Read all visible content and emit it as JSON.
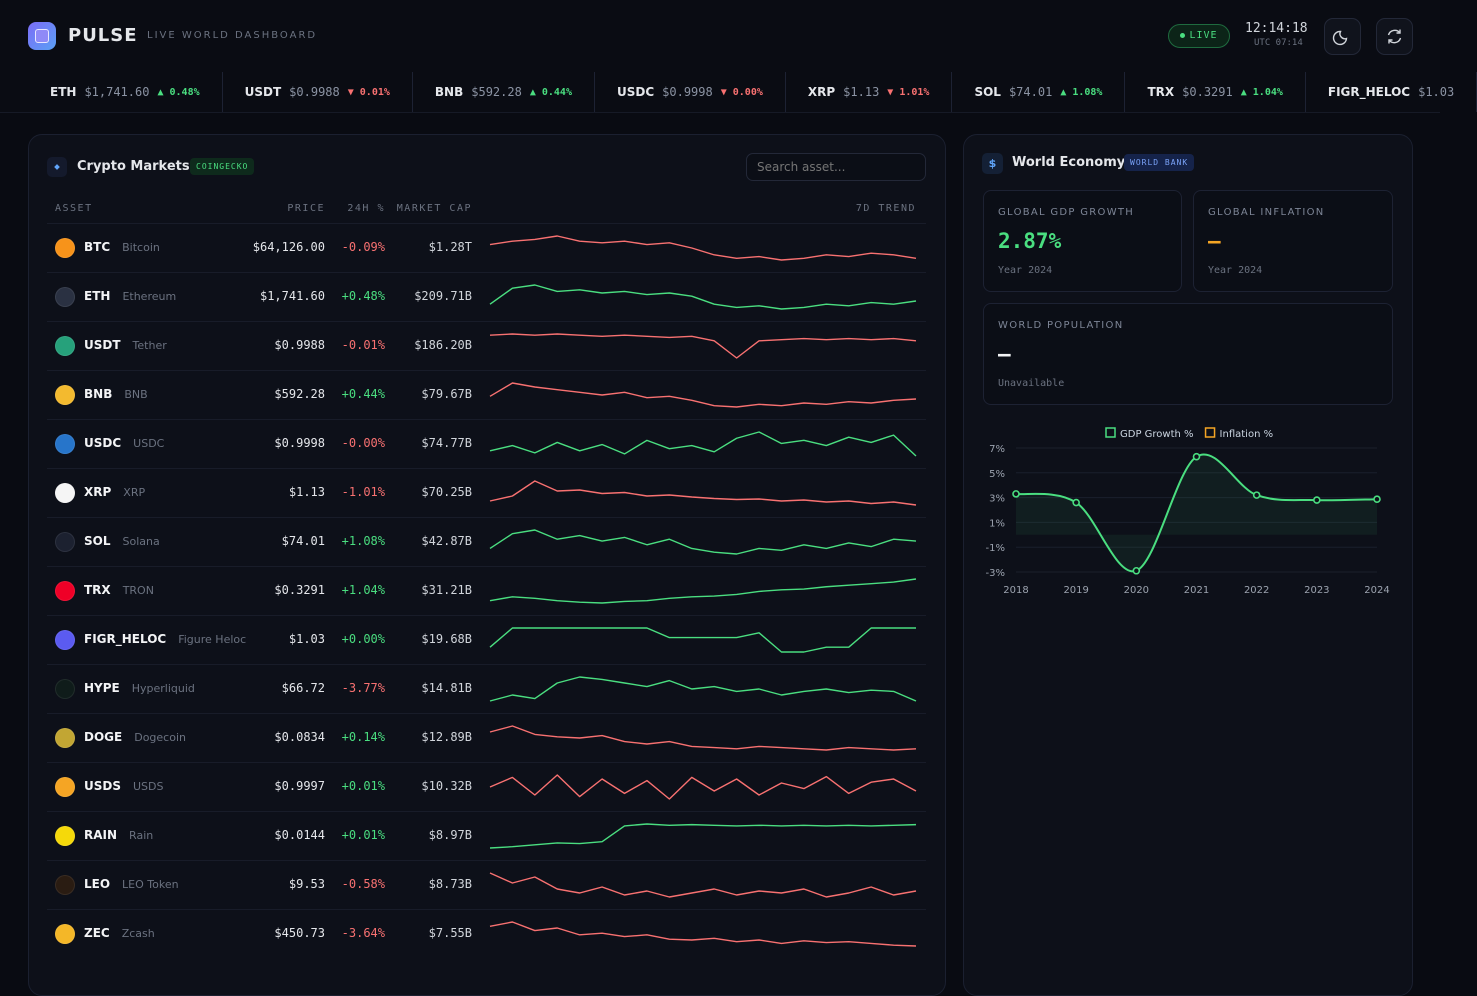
{
  "header": {
    "brand": "PULSE",
    "subtitle": "LIVE WORLD DASHBOARD",
    "live": "LIVE",
    "time": "12:14:18",
    "utc": "UTC 07:14"
  },
  "ticker": [
    {
      "symbol": "ETH",
      "price": "$1,741.60",
      "change": "▲ 0.48%"
    },
    {
      "symbol": "USDT",
      "price": "$0.9988",
      "change": "▼ 0.01%"
    },
    {
      "symbol": "BNB",
      "price": "$592.28",
      "change": "▲ 0.44%"
    },
    {
      "symbol": "USDC",
      "price": "$0.9998",
      "change": "▼ 0.00%"
    },
    {
      "symbol": "XRP",
      "price": "$1.13",
      "change": "▼ 1.01%"
    },
    {
      "symbol": "SOL",
      "price": "$74.01",
      "change": "▲ 1.08%"
    },
    {
      "symbol": "TRX",
      "price": "$0.3291",
      "change": "▲ 1.04%"
    },
    {
      "symbol": "FIGR_HELOC",
      "price": "$1.03"
    }
  ],
  "crypto": {
    "title": "Crypto Markets",
    "badge": "COINGECKO",
    "search": "Search asset...",
    "columns": [
      "ASSET",
      "PRICE",
      "24H %",
      "MARKET CAP",
      "7D TREND"
    ],
    "rows": [
      {
        "symbol": "BTC",
        "name": "Bitcoin",
        "price": "$64,126.00",
        "change": "-0.09%",
        "cap": "$1.28T",
        "icon_color": "#f7931a",
        "trend_color": "#f87171",
        "trend": [
          58,
          60,
          61,
          63,
          60,
          59,
          60,
          58,
          59,
          56,
          52,
          50,
          51,
          49,
          50,
          52,
          51,
          53,
          52,
          50
        ]
      },
      {
        "symbol": "ETH",
        "name": "Ethereum",
        "price": "$1,741.60",
        "change": "+0.48%",
        "cap": "$209.71B",
        "icon_color": "#2a3142",
        "trend_color": "#4ade80",
        "trend": [
          50,
          60,
          62,
          58,
          59,
          57,
          58,
          56,
          57,
          55,
          50,
          48,
          49,
          47,
          48,
          50,
          49,
          51,
          50,
          52
        ]
      },
      {
        "symbol": "USDT",
        "name": "Tether",
        "price": "$0.9988",
        "change": "-0.01%",
        "cap": "$186.20B",
        "icon_color": "#26a17b",
        "trend_color": "#f87171",
        "trend": [
          60,
          61,
          60,
          61,
          60,
          59,
          60,
          59,
          58,
          59,
          55,
          40,
          55,
          56,
          57,
          56,
          57,
          56,
          57,
          55
        ]
      },
      {
        "symbol": "BNB",
        "name": "BNB",
        "price": "$592.28",
        "change": "+0.44%",
        "cap": "$79.67B",
        "icon_color": "#f3ba2f",
        "trend_color": "#f87171",
        "trend": [
          55,
          65,
          62,
          60,
          58,
          56,
          58,
          54,
          55,
          52,
          48,
          47,
          49,
          48,
          50,
          49,
          51,
          50,
          52,
          53
        ]
      },
      {
        "symbol": "USDC",
        "name": "USDC",
        "price": "$0.9998",
        "change": "-0.00%",
        "cap": "$74.77B",
        "icon_color": "#2775ca",
        "trend_color": "#4ade80",
        "trend": [
          50,
          55,
          48,
          58,
          50,
          56,
          47,
          60,
          52,
          55,
          49,
          62,
          68,
          57,
          60,
          55,
          63,
          58,
          65,
          45
        ]
      },
      {
        "symbol": "XRP",
        "name": "XRP",
        "price": "$1.13",
        "change": "-1.01%",
        "cap": "$70.25B",
        "icon_color": "#f5f5f5",
        "trend_color": "#f87171",
        "trend": [
          40,
          50,
          80,
          60,
          62,
          55,
          57,
          50,
          52,
          48,
          45,
          43,
          44,
          40,
          42,
          38,
          40,
          35,
          38,
          32
        ]
      },
      {
        "symbol": "SOL",
        "name": "Solana",
        "price": "$74.01",
        "change": "+1.08%",
        "cap": "$42.87B",
        "icon_color": "#1c2130",
        "trend_color": "#4ade80",
        "trend": [
          50,
          58,
          60,
          55,
          57,
          54,
          56,
          52,
          55,
          50,
          48,
          47,
          50,
          49,
          52,
          50,
          53,
          51,
          55,
          54
        ]
      },
      {
        "symbol": "TRX",
        "name": "TRON",
        "price": "$0.3291",
        "change": "+1.04%",
        "cap": "$31.21B",
        "icon_color": "#ef0027",
        "trend_color": "#4ade80",
        "trend": [
          30,
          35,
          33,
          30,
          28,
          27,
          29,
          30,
          33,
          35,
          36,
          38,
          42,
          44,
          45,
          48,
          50,
          52,
          54,
          58
        ]
      },
      {
        "symbol": "FIGR_HELOC",
        "name": "Figure Heloc",
        "price": "$1.03",
        "change": "+0.00%",
        "cap": "$19.68B",
        "icon_color": "#5b5bf0",
        "trend_color": "#4ade80",
        "trend": [
          40,
          80,
          80,
          80,
          80,
          80,
          80,
          80,
          60,
          60,
          60,
          60,
          70,
          30,
          30,
          40,
          40,
          80,
          80,
          80
        ]
      },
      {
        "symbol": "HYPE",
        "name": "Hyperliquid",
        "price": "$66.72",
        "change": "-3.77%",
        "cap": "$14.81B",
        "icon_color": "#0f1c1a",
        "trend_color": "#4ade80",
        "trend": [
          40,
          45,
          42,
          55,
          60,
          58,
          55,
          52,
          57,
          50,
          52,
          48,
          50,
          45,
          48,
          50,
          47,
          49,
          48,
          40
        ]
      },
      {
        "symbol": "DOGE",
        "name": "Dogecoin",
        "price": "$0.0834",
        "change": "+0.14%",
        "cap": "$12.89B",
        "icon_color": "#c2a633",
        "trend_color": "#f87171",
        "trend": [
          60,
          65,
          58,
          56,
          55,
          57,
          52,
          50,
          52,
          48,
          47,
          46,
          48,
          47,
          46,
          45,
          47,
          46,
          45,
          46
        ]
      },
      {
        "symbol": "USDS",
        "name": "USDS",
        "price": "$0.9997",
        "change": "+0.01%",
        "cap": "$10.32B",
        "icon_color": "#f5a524",
        "trend_color": "#f87171",
        "trend": [
          50,
          62,
          40,
          65,
          38,
          60,
          42,
          58,
          35,
          62,
          45,
          60,
          40,
          55,
          48,
          63,
          42,
          56,
          60,
          45
        ]
      },
      {
        "symbol": "RAIN",
        "name": "Rain",
        "price": "$0.0144",
        "change": "+0.01%",
        "cap": "$8.97B",
        "icon_color": "#f5d90a",
        "trend_color": "#4ade80",
        "trend": [
          20,
          22,
          25,
          28,
          27,
          30,
          55,
          58,
          56,
          57,
          56,
          55,
          56,
          55,
          56,
          55,
          56,
          55,
          56,
          57
        ]
      },
      {
        "symbol": "LEO",
        "name": "LEO Token",
        "price": "$9.53",
        "change": "-0.58%",
        "cap": "$8.73B",
        "icon_color": "#2a1c12",
        "trend_color": "#f87171",
        "trend": [
          60,
          55,
          58,
          52,
          50,
          53,
          49,
          51,
          48,
          50,
          52,
          49,
          51,
          50,
          52,
          48,
          50,
          53,
          49,
          51
        ]
      },
      {
        "symbol": "ZEC",
        "name": "Zcash",
        "price": "$450.73",
        "change": "-3.64%",
        "cap": "$7.55B",
        "icon_color": "#f4b728",
        "trend_color": "#f87171",
        "trend": [
          60,
          65,
          55,
          58,
          50,
          52,
          48,
          50,
          45,
          44,
          46,
          42,
          44,
          40,
          43,
          41,
          42,
          40,
          38,
          37
        ]
      }
    ]
  },
  "economy": {
    "icon": "$",
    "title": "World Economy",
    "badge": "WORLD BANK",
    "cards": [
      {
        "label": "GLOBAL GDP GROWTH",
        "value": "2.87%",
        "note": "Year 2024"
      },
      {
        "label": "GLOBAL INFLATION",
        "value": "—",
        "note": "Year 2024"
      },
      {
        "label": "WORLD POPULATION",
        "value": "—",
        "note": "Unavailable"
      }
    ],
    "chart_data": {
      "type": "line",
      "categories": [
        "2018",
        "2019",
        "2020",
        "2021",
        "2022",
        "2023",
        "2024"
      ],
      "series": [
        {
          "name": "GDP Growth %",
          "color": "#4ade80",
          "values": [
            3.3,
            2.6,
            -2.9,
            6.3,
            3.2,
            2.8,
            2.87
          ]
        },
        {
          "name": "Inflation %",
          "color": "#f5a524",
          "values": [
            null,
            null,
            null,
            null,
            null,
            null,
            null
          ]
        }
      ],
      "ylim": [
        -3,
        7
      ],
      "yticks": [
        {
          "value": 7,
          "label": "7%"
        },
        {
          "value": 5,
          "label": "5%"
        },
        {
          "value": 3,
          "label": "3%"
        },
        {
          "value": 1,
          "label": "1%"
        },
        {
          "value": -1,
          "label": "-1%"
        },
        {
          "value": -3,
          "label": "-3%"
        }
      ],
      "grid": true,
      "legend": "top"
    }
  }
}
